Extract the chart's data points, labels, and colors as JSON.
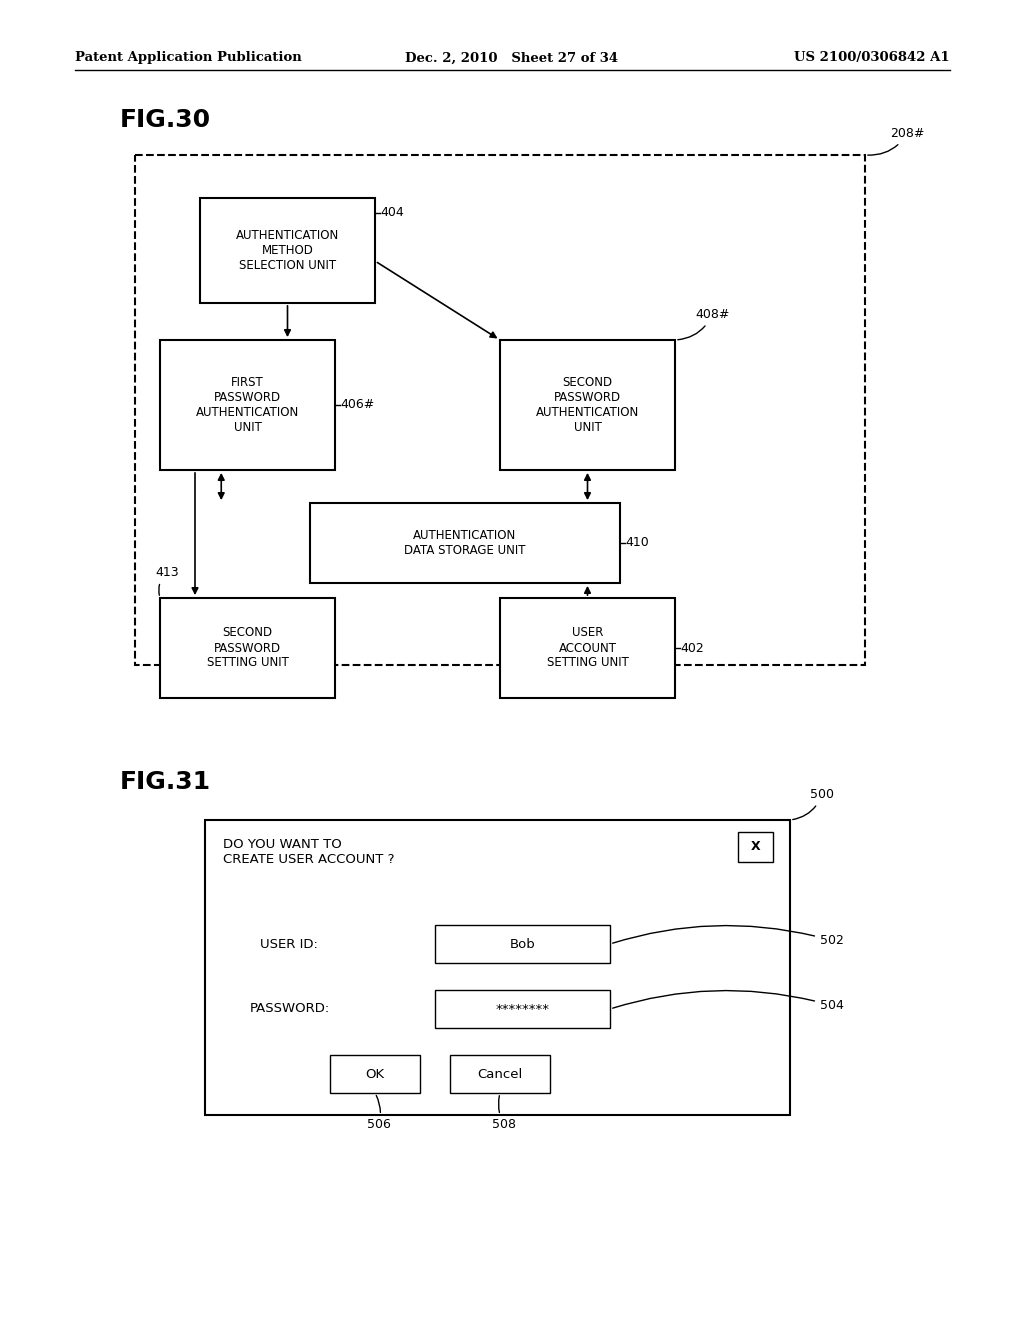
{
  "header_left": "Patent Application Publication",
  "header_mid": "Dec. 2, 2010   Sheet 27 of 34",
  "header_right": "US 2100/0306842 A1",
  "fig30_label": "FIG.30",
  "fig31_label": "FIG.31",
  "bg_color": "#ffffff"
}
